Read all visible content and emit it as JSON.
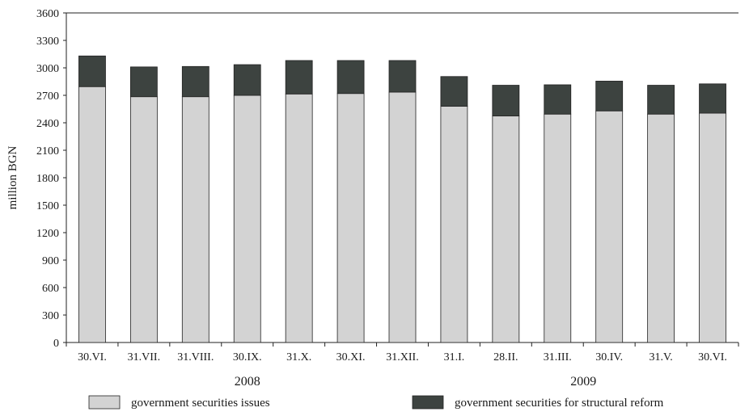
{
  "chart_data": {
    "type": "bar",
    "stacked": true,
    "title": "",
    "xlabel": "",
    "ylabel": "million BGN",
    "ylim": [
      0,
      3600
    ],
    "yticks": [
      0,
      300,
      600,
      900,
      1200,
      1500,
      1800,
      2100,
      2400,
      2700,
      3000,
      3300,
      3600
    ],
    "grid": false,
    "legend_position": "bottom",
    "categories": [
      "30.VI.",
      "31.VII.",
      "31.VIII.",
      "30.IX.",
      "31.X.",
      "30.XI.",
      "31.XII.",
      "31.I.",
      "28.II.",
      "31.III.",
      "30.IV.",
      "31.V.",
      "30.VI."
    ],
    "year_groups": [
      {
        "label": "2008",
        "start": 0,
        "end": 6
      },
      {
        "label": "2009",
        "start": 7,
        "end": 12
      }
    ],
    "series": [
      {
        "name": "government securities issues",
        "color": "#d3d3d3",
        "values": [
          2795,
          2685,
          2685,
          2700,
          2715,
          2720,
          2735,
          2580,
          2475,
          2495,
          2530,
          2495,
          2505
        ]
      },
      {
        "name": "government securities for structural reform",
        "color": "#3d4340",
        "values": [
          335,
          325,
          330,
          335,
          365,
          360,
          345,
          325,
          335,
          320,
          325,
          315,
          320
        ]
      }
    ]
  }
}
